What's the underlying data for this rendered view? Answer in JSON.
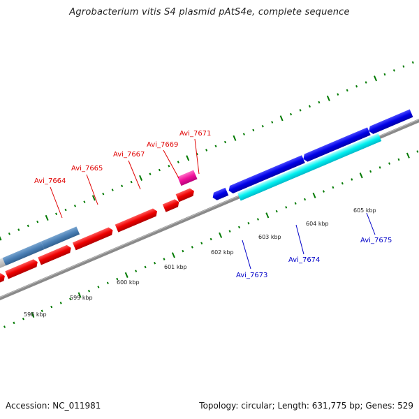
{
  "title": "Agrobacterium vitis S4 plasmid pAtS4e, complete sequence",
  "footer": {
    "accession": "Accession: NC_011981",
    "summary": "Topology: circular; Length: 631,775 bp; Genes: 529"
  },
  "colors": {
    "forward_label": "#e00000",
    "reverse_label": "#0000c8",
    "tick": "#007a00",
    "backbone": "#888888"
  },
  "kbp_labels": [
    "598 kbp",
    "599 kbp",
    "600 kbp",
    "601 kbp",
    "602 kbp",
    "603 kbp",
    "604 kbp",
    "605 kbp"
  ],
  "forward_gene_labels": [
    "Avi_7664",
    "Avi_7665",
    "Avi_7667",
    "Avi_7669",
    "Avi_7671"
  ],
  "reverse_gene_labels": [
    "Avi_7673",
    "Avi_7674",
    "Avi_7675"
  ]
}
